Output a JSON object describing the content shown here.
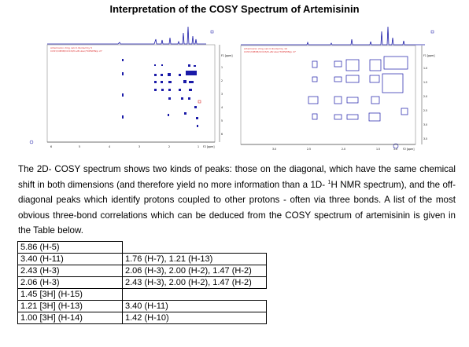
{
  "title": "Interpretation of the COSY  Spectrum of Artemisinin",
  "paragraph": {
    "part1": "The 2D- COSY spectrum shows two kinds of peaks: those on the diagonal, which have the same chemical shift in both dimensions (and therefore yield no more information than a 1D- ",
    "sup": "1",
    "part2": "H NMR spectrum), and the off-diagonal peaks which identify protons coupled to other protons - often via three bonds. A list of the most obvious three-bond correlations which can be deduced from the COSY spectrum of artemisinin is given in the Table below."
  },
  "table": {
    "rows": [
      {
        "proton": "5.86 (H-5)",
        "correlations": ""
      },
      {
        "proton": "3.40 (H-11)",
        "correlations": "1.76 (H-7), 1.21 (H-13)"
      },
      {
        "proton": "2.43 (H-3)",
        "correlations": "2.06 (H-3), 2.00 (H-2), 1.47 (H-2)"
      },
      {
        "proton": "2.06 (H-3)",
        "correlations": "2.43 (H-3), 2.00 (H-2), 1.47 (H-2)"
      },
      {
        "proton": "1.45 [3H] (H-15)",
        "correlations": ""
      },
      {
        "proton": "1.21 [3H] (H-13)",
        "correlations": "3.40 (H-11)"
      },
      {
        "proton": "1.00 [3H] (H-14)",
        "correlations": "1.42 (H-10)"
      }
    ]
  },
  "spectrum_left": {
    "label_line1": "Artemisinin 2mg calcd divided by 5",
    "label_line2": "COSY/OPDM/CDCl3/D+Bruker/TOPSPIN/p 27",
    "axis_unit": "F2 [ppm]",
    "axis_unit_f1": "F1 [ppm]",
    "x_ticks": [
      "6",
      "5",
      "4",
      "3",
      "2",
      "1"
    ],
    "y_ticks": [
      "1",
      "2",
      "3",
      "4",
      "5",
      "6"
    ],
    "colors": {
      "contour": "#1a1aa8",
      "label": "#d33333"
    }
  },
  "spectrum_right": {
    "label_line1": "Artemisinin 2mg calcd divided by 10",
    "label_line2": "COSY/OPDM/CDCl3/D+Bruker/TOPSPIN/p 27",
    "axis_unit": "F2 [ppm]",
    "axis_unit_f1": "F1 [ppm]",
    "x_ticks": [
      "3.0",
      "2.5",
      "2.0",
      "1.5",
      "1.0"
    ],
    "y_ticks": [
      "1.0",
      "1.5",
      "2.0",
      "2.5",
      "3.0",
      "3.5"
    ],
    "colors": {
      "contour": "#1a1aa8",
      "label": "#d33333"
    }
  }
}
